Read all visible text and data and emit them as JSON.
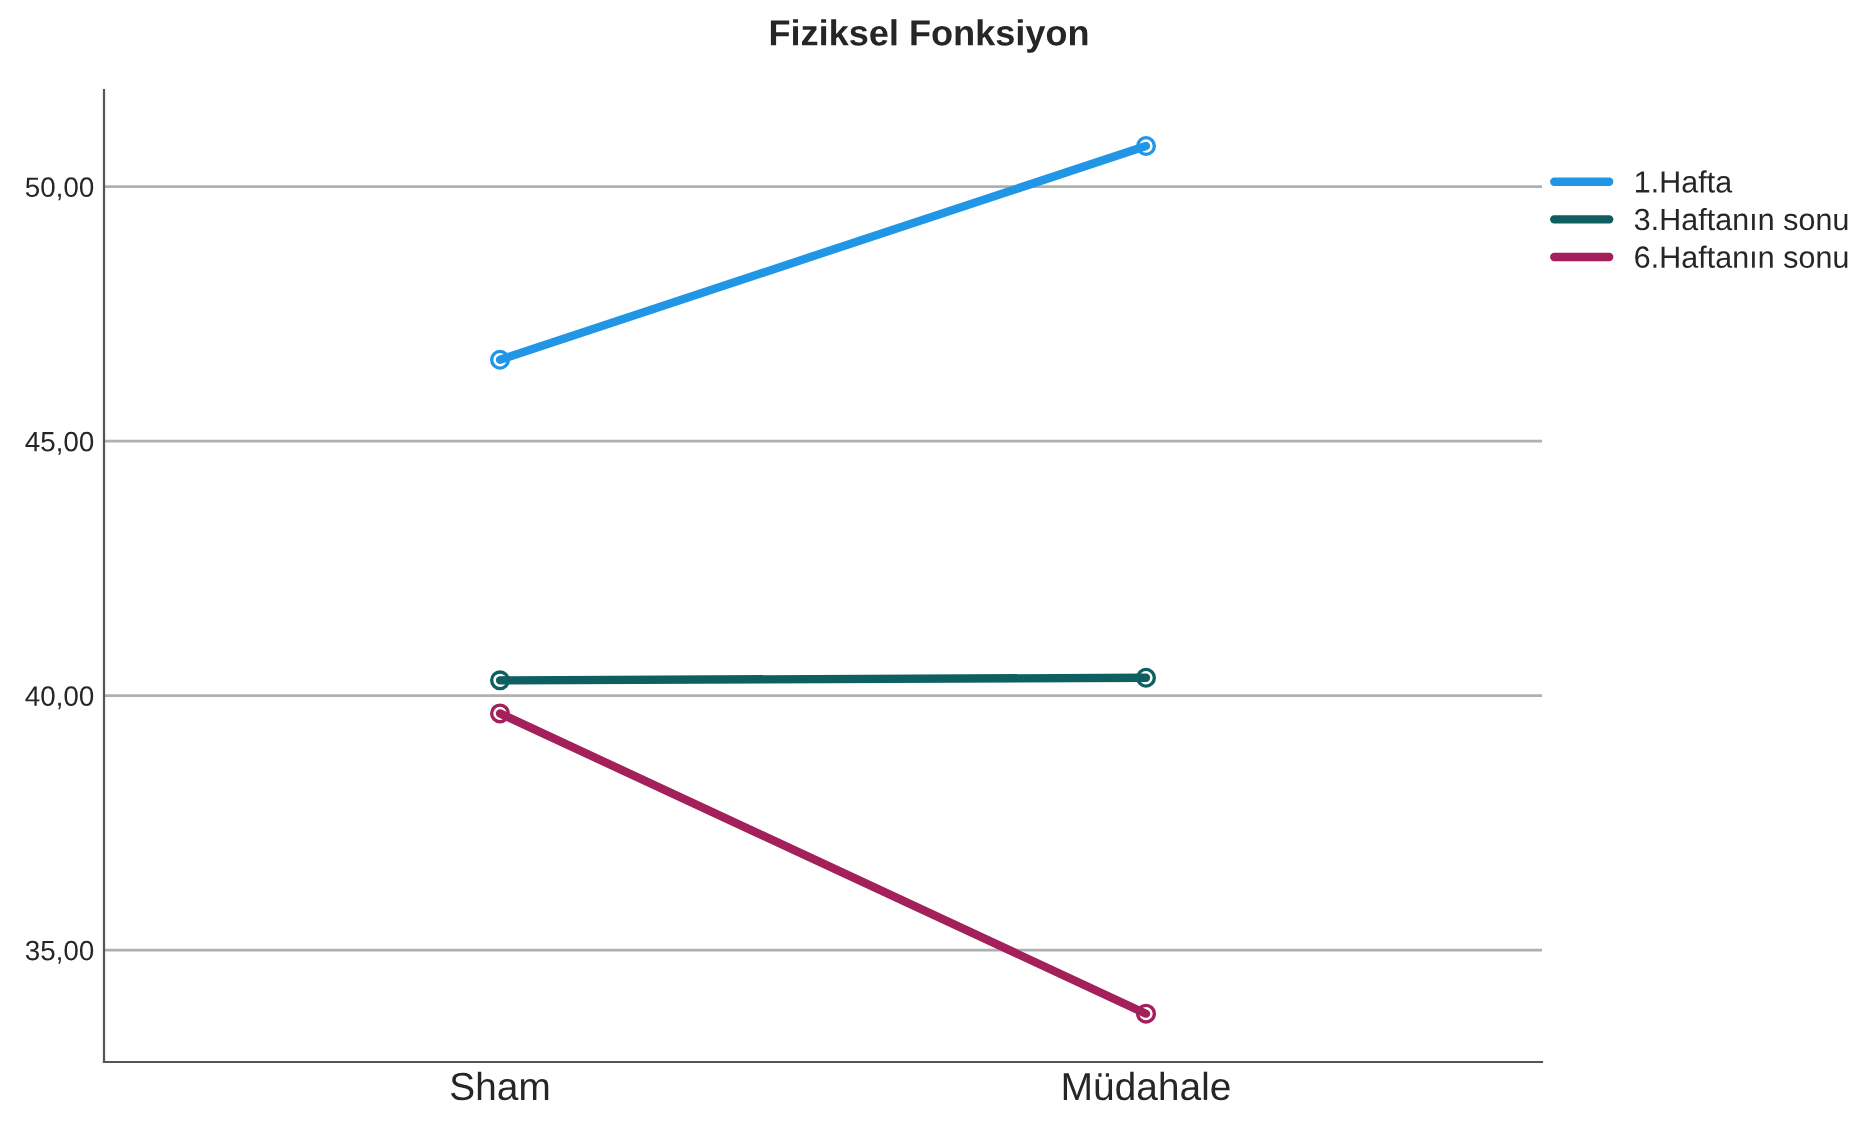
{
  "chart_data": {
    "type": "line",
    "title": "Fiziksel Fonksiyon",
    "categories": [
      "Sham",
      "Müdahale"
    ],
    "series": [
      {
        "name": "1.Hafta",
        "color": "#2196e6",
        "values": [
          46.6,
          50.8
        ]
      },
      {
        "name": "3.Haftanın sonu",
        "color": "#0e5f5f",
        "values": [
          40.3,
          40.35
        ]
      },
      {
        "name": "6.Haftanın sonu",
        "color": "#a3205a",
        "values": [
          39.65,
          33.75
        ]
      }
    ],
    "ylim": [
      32.8,
      51.9
    ],
    "yticks": [
      {
        "value": 35,
        "label": "35,00"
      },
      {
        "value": 40,
        "label": "40,00"
      },
      {
        "value": 45,
        "label": "45,00"
      },
      {
        "value": 50,
        "label": "50,00"
      }
    ],
    "grid": "y",
    "legend": "top right",
    "marker": "circle",
    "line_style": "solid"
  }
}
